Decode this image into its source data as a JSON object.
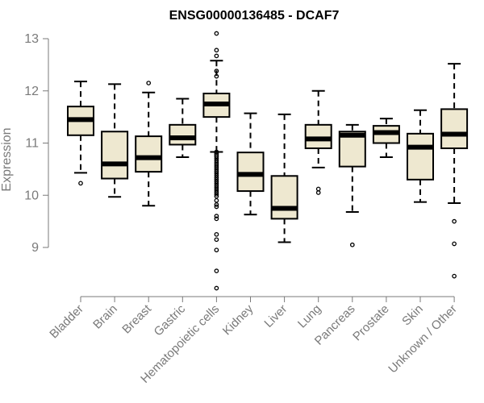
{
  "chart_data": {
    "type": "boxplot",
    "title": "ENSG00000136485 - DCAF7",
    "xlabel": "",
    "ylabel": "Expression",
    "ylim": [
      8.1,
      13.2
    ],
    "yticks": [
      9,
      10,
      11,
      12,
      13
    ],
    "box_fill": "#EEE8D0",
    "box_stroke": "#000000",
    "point_color": "#000000",
    "categories": [
      "Bladder",
      "Brain",
      "Breast",
      "Gastric",
      "Hematopoietic cells",
      "Kidney",
      "Liver",
      "Lung",
      "Pancreas",
      "Prostate",
      "Skin",
      "Unknown / Other"
    ],
    "boxes": [
      {
        "category": "Bladder",
        "whisker_low": 10.43,
        "q1": 11.15,
        "median": 11.45,
        "q3": 11.7,
        "whisker_high": 12.18,
        "outliers": [
          10.23
        ]
      },
      {
        "category": "Brain",
        "whisker_low": 9.97,
        "q1": 10.32,
        "median": 10.6,
        "q3": 11.22,
        "whisker_high": 12.13,
        "outliers": []
      },
      {
        "category": "Breast",
        "whisker_low": 9.8,
        "q1": 10.45,
        "median": 10.72,
        "q3": 11.13,
        "whisker_high": 11.97,
        "outliers": [
          12.15
        ]
      },
      {
        "category": "Gastric",
        "whisker_low": 10.73,
        "q1": 10.97,
        "median": 11.1,
        "q3": 11.35,
        "whisker_high": 11.85,
        "outliers": []
      },
      {
        "category": "Hematopoietic cells",
        "whisker_low": 10.83,
        "q1": 11.5,
        "median": 11.75,
        "q3": 11.95,
        "whisker_high": 12.58,
        "outliers": [
          13.1,
          12.78,
          12.67,
          12.38,
          12.28,
          10.83,
          10.8,
          10.77,
          10.74,
          10.7,
          10.66,
          10.62,
          10.58,
          10.54,
          10.5,
          10.46,
          10.42,
          10.38,
          10.34,
          10.3,
          10.26,
          10.22,
          10.18,
          10.14,
          10.1,
          10.06,
          10.02,
          9.98,
          9.9,
          9.82,
          9.78,
          9.6,
          9.55,
          9.25,
          9.15,
          8.95,
          8.55,
          8.22
        ]
      },
      {
        "category": "Kidney",
        "whisker_low": 9.63,
        "q1": 10.08,
        "median": 10.4,
        "q3": 10.82,
        "whisker_high": 11.57,
        "outliers": []
      },
      {
        "category": "Liver",
        "whisker_low": 9.1,
        "q1": 9.55,
        "median": 9.75,
        "q3": 10.37,
        "whisker_high": 11.55,
        "outliers": []
      },
      {
        "category": "Lung",
        "whisker_low": 10.53,
        "q1": 10.9,
        "median": 11.08,
        "q3": 11.35,
        "whisker_high": 12.0,
        "outliers": [
          10.12,
          10.05
        ]
      },
      {
        "category": "Pancreas",
        "whisker_low": 9.68,
        "q1": 10.55,
        "median": 11.15,
        "q3": 11.22,
        "whisker_high": 11.35,
        "outliers": [
          9.05
        ]
      },
      {
        "category": "Prostate",
        "whisker_low": 10.73,
        "q1": 11.0,
        "median": 11.2,
        "q3": 11.33,
        "whisker_high": 11.47,
        "outliers": []
      },
      {
        "category": "Skin",
        "whisker_low": 9.87,
        "q1": 10.3,
        "median": 10.92,
        "q3": 11.18,
        "whisker_high": 11.63,
        "outliers": []
      },
      {
        "category": "Unknown / Other",
        "whisker_low": 9.85,
        "q1": 10.9,
        "median": 11.17,
        "q3": 11.65,
        "whisker_high": 12.52,
        "outliers": [
          9.5,
          9.07,
          8.45
        ]
      }
    ]
  }
}
